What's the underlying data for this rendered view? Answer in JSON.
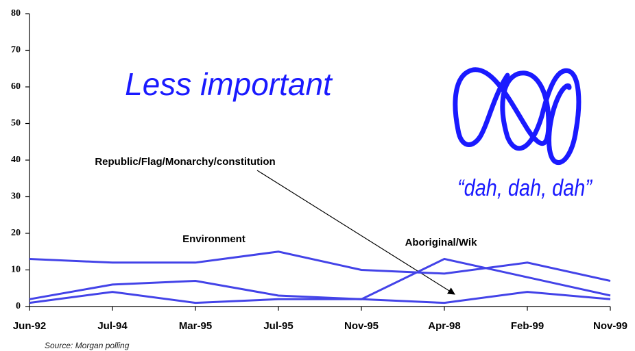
{
  "chart_data": {
    "type": "line",
    "title": "Less important",
    "categories": [
      "Jun-92",
      "Jul-94",
      "Mar-95",
      "Jul-95",
      "Nov-95",
      "Apr-98",
      "Feb-99",
      "Nov-99"
    ],
    "series": [
      {
        "name": "Environment",
        "color": "#4343e8",
        "values": [
          13,
          12,
          12,
          15,
          10,
          9,
          12,
          7
        ]
      },
      {
        "name": "Aboriginal/Wik",
        "color": "#4343e8",
        "values": [
          2,
          6,
          7,
          3,
          2,
          13,
          8,
          3
        ]
      },
      {
        "name": "Republic/Flag/Monarchy/constitution",
        "color": "#4343e8",
        "values": [
          1,
          4,
          1,
          2,
          2,
          1,
          4,
          2
        ]
      }
    ],
    "ylim": [
      0,
      80
    ],
    "yticks": [
      0,
      10,
      20,
      30,
      40,
      50,
      60,
      70,
      80
    ],
    "grid": false,
    "annotation": "“dah, dah, dah”",
    "source": "Source: Morgan polling"
  }
}
